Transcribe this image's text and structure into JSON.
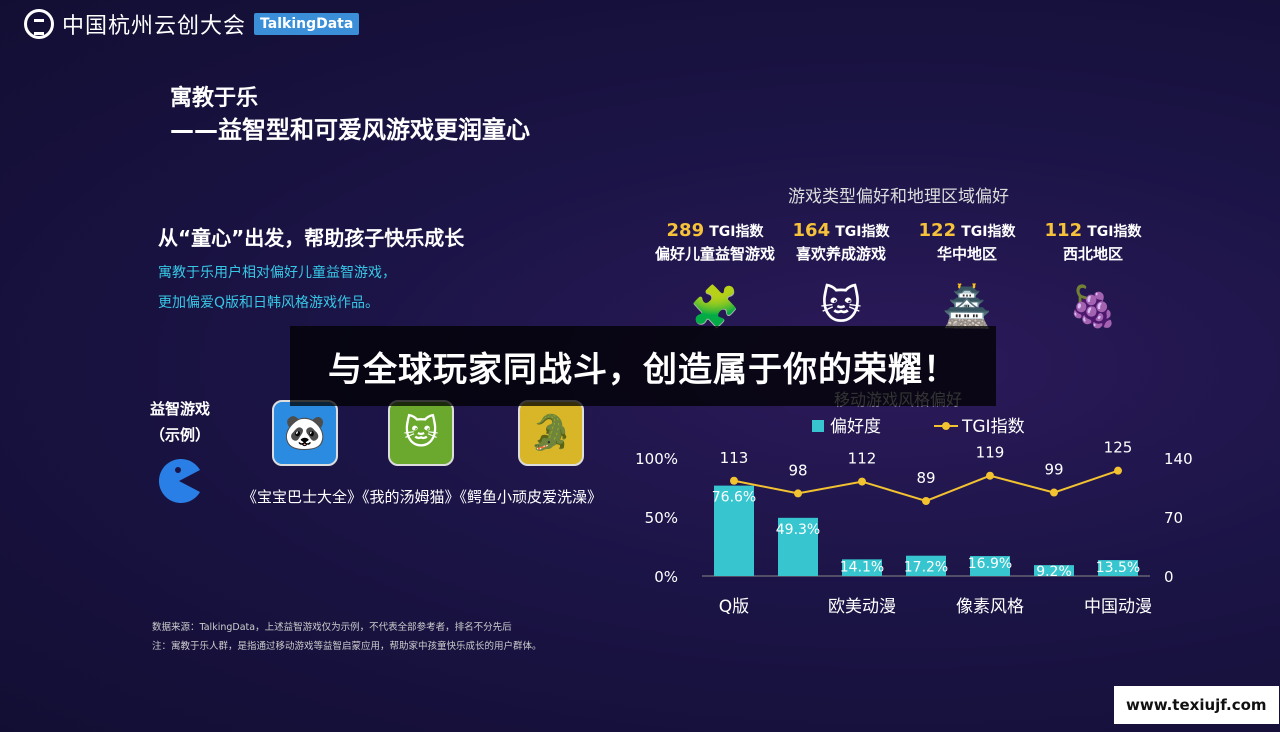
{
  "header": {
    "logo_text": "中国杭州云创大会",
    "badge": "TalkingData"
  },
  "title": {
    "line1": "寓教于乐",
    "line2": "——益智型和可爱风游戏更润童心"
  },
  "subtitle": {
    "heading": "从“童心”出发，帮助孩子快乐成长",
    "desc_line1": "寓教于乐用户相对偏好儿童益智游戏，",
    "desc_line2": "更加偏爱Q版和日韩风格游戏作品。"
  },
  "preference": {
    "title": "游戏类型偏好和地理区域偏好",
    "stats": [
      {
        "value": "289",
        "unit": "TGI指数",
        "desc": "偏好儿童益智游戏",
        "icon": "puzzle-icon",
        "glyph": "🧩"
      },
      {
        "value": "164",
        "unit": "TGI指数",
        "desc": "喜欢养成游戏",
        "icon": "cat-icon",
        "glyph": "🐱"
      },
      {
        "value": "122",
        "unit": "TGI指数",
        "desc": "华中地区",
        "icon": "pagoda-icon",
        "glyph": "🏯"
      },
      {
        "value": "112",
        "unit": "TGI指数",
        "desc": "西北地区",
        "icon": "grapes-icon",
        "glyph": "🍇"
      }
    ]
  },
  "edu": {
    "label_line1": "益智游戏",
    "label_line2": "（示例）",
    "apps": [
      {
        "icon": "panda-bus-app-icon",
        "glyph": "🐼",
        "bg": "#2a8be0"
      },
      {
        "icon": "talking-tom-app-icon",
        "glyph": "🐱",
        "bg": "#6aa82e"
      },
      {
        "icon": "crocodile-app-icon",
        "glyph": "🐊",
        "bg": "#d8b628"
      }
    ],
    "caption": "《宝宝巴士大全》《我的汤姆猫》《鳄鱼小顽皮爱洗澡》"
  },
  "banner": {
    "text": "与全球玩家同战斗，创造属于你的荣耀！"
  },
  "chart_data": {
    "type": "bar",
    "title": "移动游戏风格偏好",
    "categories": [
      "Q版",
      "",
      "欧美动漫",
      "",
      "像素风格",
      "",
      "中国动漫"
    ],
    "series": [
      {
        "name": "偏好度",
        "type": "bar",
        "values": [
          76.6,
          49.3,
          14.1,
          17.2,
          16.9,
          9.2,
          13.5
        ],
        "labels": [
          "76.6%",
          "49.3%",
          "14.1%",
          "17.2%",
          "16.9%",
          "9.2%",
          "13.5%"
        ],
        "color": "#37c6cf"
      },
      {
        "name": "TGI指数",
        "type": "line",
        "values": [
          113,
          98,
          112,
          89,
          119,
          99,
          125
        ],
        "color": "#f2c230"
      }
    ],
    "y_left": {
      "ticks": [
        "100%",
        "50%",
        "0%"
      ],
      "range": [
        0,
        100
      ]
    },
    "y_right": {
      "ticks": [
        "140",
        "70",
        "0"
      ],
      "range": [
        0,
        140
      ]
    },
    "legend_position": "top"
  },
  "footnote": {
    "line1": "数据来源：TalkingData，上述益智游戏仅为示例，不代表全部参考者，排名不分先后",
    "line2": "注：寓教于乐人群，是指通过移动游戏等益智启蒙应用，帮助家中孩童快乐成长的用户群体。"
  },
  "watermark": "www.texiujf.com"
}
